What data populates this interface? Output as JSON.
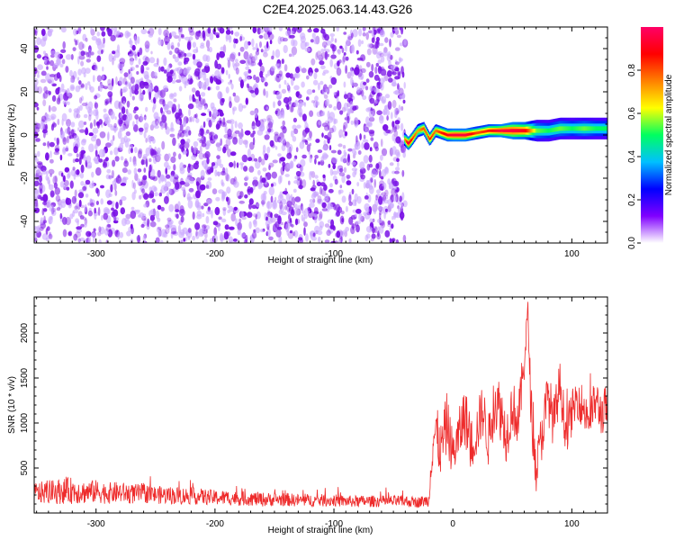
{
  "figure_title": "C2E4.2025.063.14.43.G26",
  "chart_data": [
    {
      "type": "heatmap",
      "title": "",
      "xlabel": "Height of straight line (km)",
      "ylabel": "Frequency (Hz)",
      "xlim": [
        -352,
        130
      ],
      "ylim": [
        -50,
        50
      ],
      "xticks": [
        -300,
        -200,
        -100,
        0,
        100
      ],
      "yticks": [
        -40,
        -20,
        0,
        20,
        40
      ],
      "grid": false,
      "colorbar": {
        "label": "Normalized spectral amplitude",
        "range": [
          0,
          1
        ],
        "ticks": [
          0.0,
          0.2,
          0.4,
          0.6,
          0.8
        ],
        "colormap": [
          "#ffffff",
          "#8000ff",
          "#0000ff",
          "#00c0ff",
          "#00ff60",
          "#ffff00",
          "#ff8000",
          "#ff0000",
          "#ff0066"
        ]
      },
      "noise_region": {
        "x_from": -352,
        "x_to": -40,
        "freq_from": -50,
        "freq_to": 50,
        "amplitude_range": [
          0.0,
          0.15
        ]
      },
      "signal_ridge": {
        "x": [
          -41,
          -38,
          -35,
          -30,
          -25,
          -22,
          -20,
          -15,
          -10,
          -5,
          0,
          10,
          20,
          30,
          40,
          50,
          60,
          70,
          80,
          90,
          100,
          110,
          120,
          130
        ],
        "frequency": [
          -2,
          -4,
          -2,
          2,
          3,
          0,
          -2,
          2,
          1,
          0,
          0,
          0,
          1,
          2,
          2,
          2,
          2,
          2,
          2,
          3,
          3,
          3,
          3,
          3
        ],
        "bandwidth": [
          3,
          3,
          3,
          3,
          3,
          3,
          3,
          3,
          3,
          3,
          3,
          3,
          3,
          3,
          3,
          4,
          4,
          5,
          5,
          5,
          5,
          5,
          5,
          5
        ],
        "peak_amplitude": [
          0.7,
          0.95,
          0.85,
          0.7,
          0.8,
          0.75,
          0.85,
          0.75,
          0.85,
          0.9,
          0.95,
          0.95,
          0.8,
          0.85,
          0.95,
          0.95,
          0.9,
          0.55,
          0.5,
          0.55,
          0.5,
          0.55,
          0.5,
          0.5
        ]
      }
    },
    {
      "type": "line",
      "title": "",
      "xlabel": "Height of straight line (km)",
      "ylabel": "SNR (10 * v/v)",
      "xlim": [
        -352,
        130
      ],
      "ylim": [
        0,
        2400
      ],
      "xticks": [
        -300,
        -200,
        -100,
        0,
        100
      ],
      "yticks": [
        500,
        1000,
        1500,
        2000
      ],
      "grid": false,
      "series": [
        {
          "color": "#ee2b2b",
          "x": [
            -352,
            -340,
            -330,
            -320,
            -310,
            -300,
            -290,
            -280,
            -270,
            -260,
            -250,
            -240,
            -230,
            -220,
            -210,
            -200,
            -190,
            -180,
            -170,
            -160,
            -150,
            -140,
            -130,
            -120,
            -110,
            -100,
            -90,
            -80,
            -70,
            -60,
            -50,
            -40,
            -30,
            -25,
            -20,
            -18,
            -15,
            -10,
            -5,
            0,
            5,
            10,
            15,
            20,
            25,
            30,
            35,
            40,
            45,
            50,
            55,
            60,
            63,
            66,
            70,
            75,
            80,
            85,
            90,
            95,
            100,
            105,
            110,
            115,
            120,
            125,
            130
          ],
          "y": [
            220,
            230,
            240,
            250,
            230,
            240,
            220,
            230,
            210,
            220,
            200,
            200,
            190,
            190,
            180,
            170,
            170,
            160,
            160,
            150,
            150,
            150,
            140,
            140,
            140,
            140,
            130,
            130,
            130,
            130,
            130,
            130,
            120,
            130,
            140,
            700,
            900,
            700,
            1000,
            650,
            850,
            1100,
            750,
            900,
            1150,
            800,
            1250,
            1150,
            850,
            1200,
            1000,
            1700,
            2200,
            1100,
            450,
            900,
            1300,
            1000,
            1450,
            900,
            1100,
            1300,
            1150,
            1050,
            1250,
            1100,
            1200
          ],
          "noise": [
            120,
            130,
            140,
            150,
            130,
            130,
            120,
            120,
            110,
            110,
            100,
            100,
            100,
            95,
            90,
            85,
            85,
            80,
            80,
            80,
            75,
            75,
            70,
            70,
            70,
            70,
            65,
            65,
            65,
            65,
            65,
            65,
            60,
            65,
            70,
            300,
            350,
            300,
            350,
            250,
            300,
            350,
            300,
            300,
            300,
            300,
            350,
            350,
            300,
            300,
            300,
            250,
            200,
            300,
            250,
            300,
            300,
            300,
            250,
            250,
            250,
            250,
            250,
            250,
            250,
            250,
            250
          ]
        }
      ]
    }
  ]
}
